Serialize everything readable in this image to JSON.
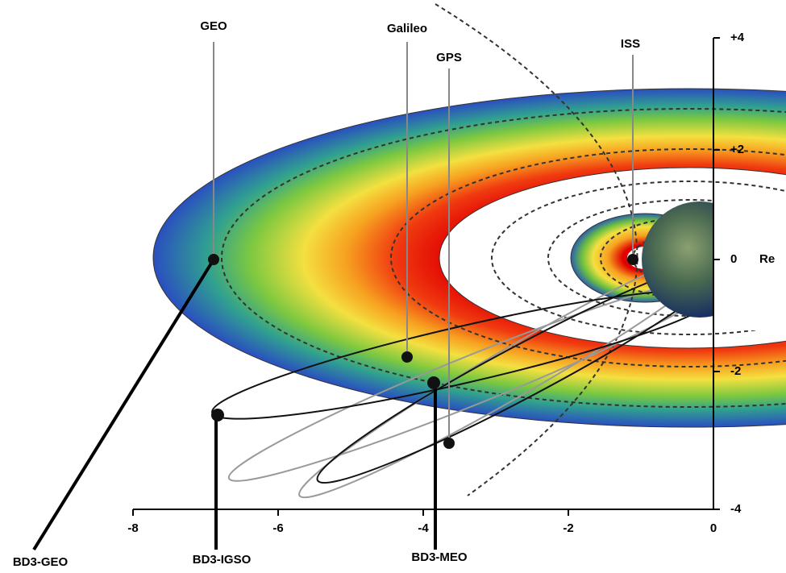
{
  "satellites": [
    "GEO",
    "Galileo",
    "GPS",
    "ISS"
  ],
  "bd3": [
    "BD3-GEO",
    "BD3-IGSO",
    "BD3-MEO"
  ],
  "x_axis": {
    "ticks": [
      "-8",
      "-6",
      "-4",
      "-2",
      "0"
    ]
  },
  "y_axis": {
    "ticks": [
      "+4",
      "+2",
      "0",
      "-2",
      "-4"
    ],
    "unit": "Re"
  }
}
